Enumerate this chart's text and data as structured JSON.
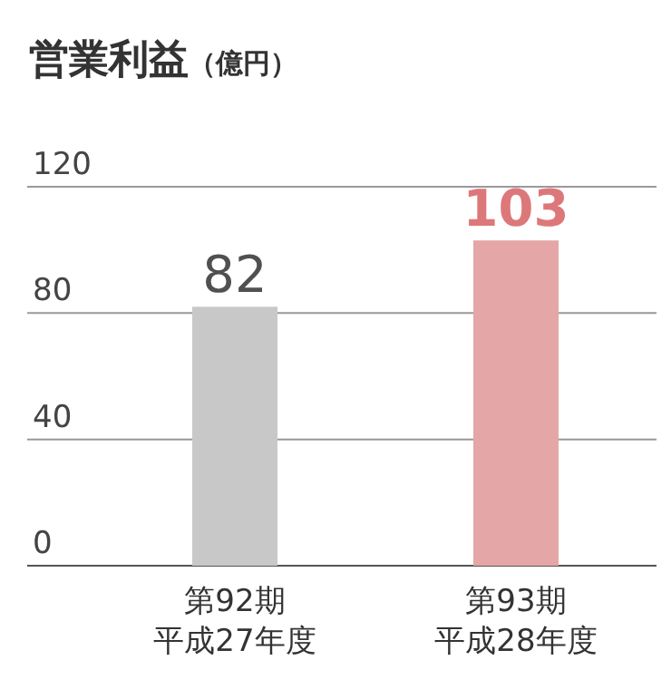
{
  "chart_data": {
    "type": "bar",
    "title": "営業利益",
    "ylabel": "（億円）",
    "categories": [
      "第92期平成27年度",
      "第93期平成28年度"
    ],
    "values": [
      82,
      103
    ],
    "colors": [
      "#c8c8c8",
      "#e4a6a7"
    ],
    "ylim": [
      0,
      120
    ],
    "yticks": [
      0,
      40,
      80,
      120
    ],
    "grid": "y",
    "data_labels": true
  }
}
